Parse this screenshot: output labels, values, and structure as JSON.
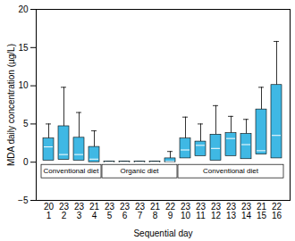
{
  "chart_data": {
    "type": "box",
    "x_label": "Sequential day",
    "y_label": "MDA daily concentration (µg/L)",
    "categories": [
      1,
      2,
      3,
      4,
      5,
      6,
      7,
      8,
      9,
      10,
      11,
      12,
      13,
      14,
      15,
      16
    ],
    "n": [
      20,
      23,
      23,
      21,
      23,
      23,
      23,
      21,
      22,
      23,
      23,
      23,
      23,
      23,
      21,
      22
    ],
    "q1": [
      0.2,
      0.3,
      0.2,
      0.0,
      0.0,
      0.0,
      0.0,
      0.0,
      0.0,
      0.5,
      0.8,
      0.2,
      0.8,
      0.4,
      1.0,
      0.5
    ],
    "median": [
      2.0,
      1.0,
      1.0,
      0.4,
      0.0,
      0.0,
      0.0,
      0.0,
      0.1,
      1.6,
      2.2,
      1.8,
      3.1,
      2.3,
      1.5,
      3.5
    ],
    "q3": [
      3.1,
      4.7,
      3.2,
      2.0,
      0.1,
      0.1,
      0.1,
      0.1,
      0.5,
      3.1,
      2.7,
      3.6,
      3.8,
      3.7,
      6.9,
      10.1
    ],
    "whisker_high": [
      5.0,
      9.8,
      6.5,
      4.1,
      0.1,
      0.1,
      0.1,
      0.1,
      1.4,
      5.9,
      5.0,
      7.4,
      6.0,
      5.6,
      9.8,
      15.8
    ],
    "color": "#3fb8e4",
    "ylim": [
      -5,
      20
    ],
    "yticks": [
      -5,
      0,
      5,
      10,
      15,
      20
    ],
    "grid": false,
    "annotations": [
      {
        "text": "Conventional diet",
        "from": 1,
        "to": 4
      },
      {
        "text": "Organic diet",
        "from": 5,
        "to": 9
      },
      {
        "text": "Conventional diet",
        "from": 10,
        "to": 16
      }
    ]
  }
}
